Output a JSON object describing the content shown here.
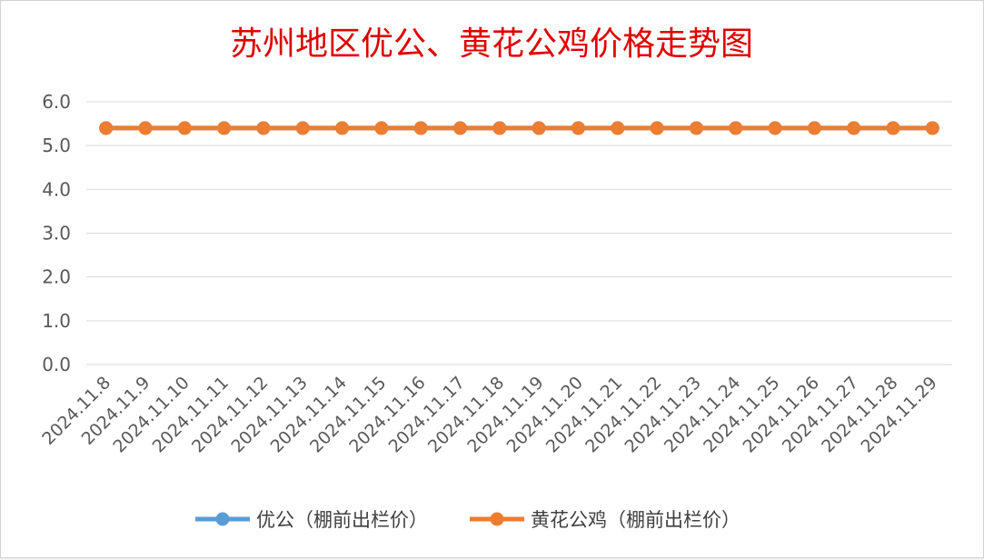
{
  "chart_data": {
    "type": "line",
    "title": "苏州地区优公、黄花公鸡价格走势图",
    "xlabel": "",
    "ylabel": "",
    "categories": [
      "2024.11.8",
      "2024.11.9",
      "2024.11.10",
      "2024.11.11",
      "2024.11.12",
      "2024.11.13",
      "2024.11.14",
      "2024.11.15",
      "2024.11.16",
      "2024.11.17",
      "2024.11.18",
      "2024.11.19",
      "2024.11.20",
      "2024.11.21",
      "2024.11.22",
      "2024.11.23",
      "2024.11.24",
      "2024.11.25",
      "2024.11.26",
      "2024.11.27",
      "2024.11.28",
      "2024.11.29"
    ],
    "yticks": [
      "0.0",
      "1.0",
      "2.0",
      "3.0",
      "4.0",
      "5.0",
      "6.0"
    ],
    "ylim": [
      0,
      6
    ],
    "grid": true,
    "legend_position": "bottom",
    "series": [
      {
        "name": "优公（棚前出栏价）",
        "color": "#5b9bd5",
        "values": [
          5.4,
          5.4,
          5.4,
          5.4,
          5.4,
          5.4,
          5.4,
          5.4,
          5.4,
          5.4,
          5.4,
          5.4,
          5.4,
          5.4,
          5.4,
          5.4,
          5.4,
          5.4,
          5.4,
          5.4,
          5.4,
          5.4
        ]
      },
      {
        "name": "黄花公鸡（棚前出栏价）",
        "color": "#ed7d31",
        "values": [
          5.4,
          5.4,
          5.4,
          5.4,
          5.4,
          5.4,
          5.4,
          5.4,
          5.4,
          5.4,
          5.4,
          5.4,
          5.4,
          5.4,
          5.4,
          5.4,
          5.4,
          5.4,
          5.4,
          5.4,
          5.4,
          5.4
        ]
      }
    ]
  }
}
